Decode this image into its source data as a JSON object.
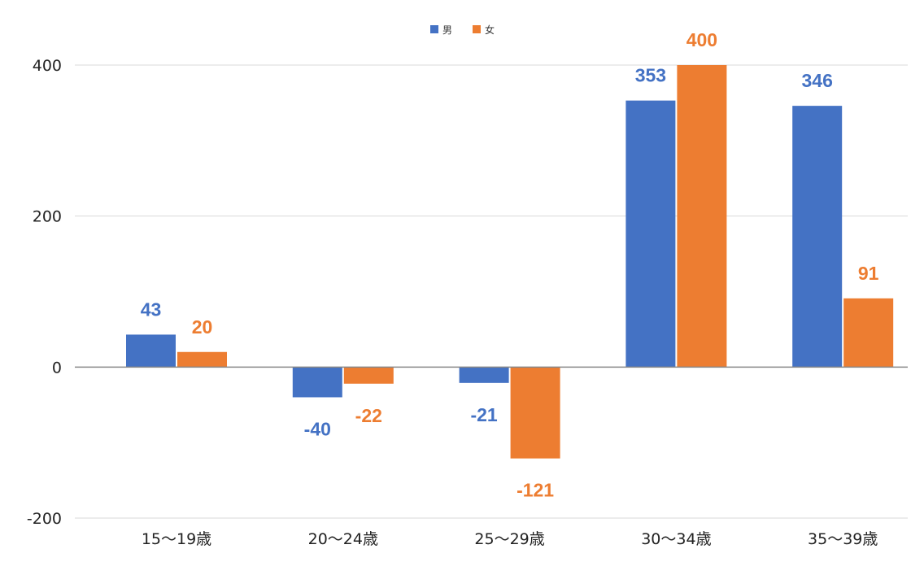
{
  "chart_data": {
    "type": "bar",
    "categories": [
      "15〜19歳",
      "20〜24歳",
      "25〜29歳",
      "30〜34歳",
      "35〜39歳"
    ],
    "series": [
      {
        "name": "男",
        "values": [
          43,
          -40,
          -21,
          353,
          346
        ],
        "color": "#4472C4"
      },
      {
        "name": "女",
        "values": [
          20,
          -22,
          -121,
          400,
          91
        ],
        "color": "#ED7D31"
      }
    ],
    "ylim": [
      -200,
      400
    ],
    "yticks": [
      -200,
      0,
      200,
      400
    ],
    "grid": true,
    "legend": "top-center",
    "title": "",
    "xlabel": "",
    "ylabel": ""
  }
}
